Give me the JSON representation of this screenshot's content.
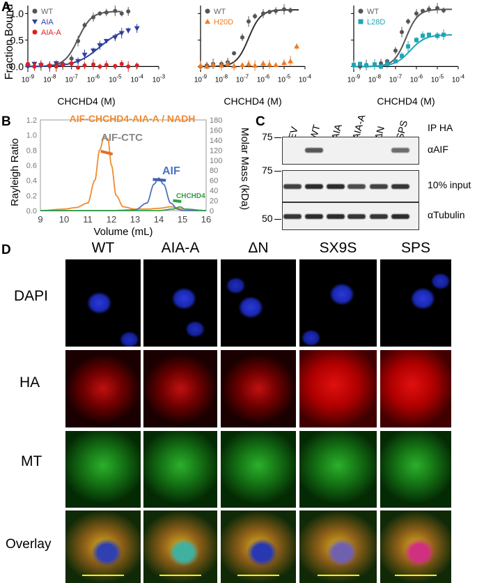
{
  "panels": {
    "A": "A",
    "B": "B",
    "C": "C",
    "D": "D"
  },
  "panelA": {
    "ylabel": "Fraction  Bound",
    "yticks": [
      "0.0",
      "0.5",
      "1.0"
    ],
    "xticks": [
      "10<sup>-9</sup>",
      "10<sup>-8</sup>",
      "10<sup>-7</sup>",
      "10<sup>-6</sup>",
      "10<sup>-5</sup>",
      "10<sup>-4</sup>",
      "10<sup>-3</sup>"
    ],
    "xticks_short": [
      "10<sup>-9</sup>",
      "10<sup>-8</sup>",
      "10<sup>-7</sup>",
      "10<sup>-6</sup>",
      "10<sup>-5</sup>",
      "10<sup>-4</sup>"
    ],
    "xlabel": "CHCHD4 (M)"
  },
  "chart_data": [
    {
      "type": "scatter",
      "x_scale": "log",
      "xlabel": "CHCHD4 (M)",
      "ylabel": "Fraction  Bound",
      "xlim": [
        1e-09,
        0.001
      ],
      "ylim": [
        -0.1,
        1.15
      ],
      "legend": "top-left",
      "series": [
        {
          "name": "WT",
          "color": "#555555",
          "marker": "circle",
          "x": [
            1e-09,
            2e-09,
            4e-09,
            1e-08,
            2e-08,
            4e-08,
            1e-07,
            2e-07,
            4e-07,
            1e-06,
            2e-06,
            4e-06,
            1e-05,
            2e-05,
            4e-05
          ],
          "y": [
            0.01,
            0.0,
            0.02,
            0.01,
            0.03,
            0.05,
            0.15,
            0.48,
            0.78,
            0.93,
            1.0,
            1.02,
            1.05,
            1.0,
            1.04
          ]
        },
        {
          "name": "AIA",
          "color": "#2e3f9e",
          "marker": "triangle-down",
          "x": [
            1e-09,
            2e-09,
            4e-09,
            1e-08,
            2e-08,
            4e-08,
            1e-07,
            2e-07,
            4e-07,
            1e-06,
            2e-06,
            4e-06,
            1e-05,
            2e-05,
            4e-05,
            0.0001
          ],
          "y": [
            0.0,
            0.05,
            0.02,
            0.0,
            0.06,
            0.02,
            0.04,
            0.1,
            0.22,
            0.3,
            0.4,
            0.48,
            0.55,
            0.63,
            0.68,
            0.72
          ]
        },
        {
          "name": "AIA-A",
          "color": "#e02020",
          "marker": "circle",
          "x": [
            1e-09,
            2e-09,
            4e-09,
            1e-08,
            2e-08,
            4e-08,
            1e-07,
            2e-07,
            4e-07,
            1e-06,
            2e-06,
            4e-06,
            1e-05,
            2e-05,
            4e-05,
            0.0001
          ],
          "y": [
            0.05,
            0.0,
            0.04,
            0.02,
            0.0,
            0.03,
            0.06,
            -0.02,
            0.02,
            0.04,
            0.0,
            0.03,
            0.01,
            0.05,
            0.0,
            0.02
          ]
        }
      ]
    },
    {
      "type": "scatter",
      "x_scale": "log",
      "xlabel": "CHCHD4 (M)",
      "xlim": [
        1e-09,
        0.0001
      ],
      "ylim": [
        -0.1,
        1.15
      ],
      "legend": "top-left",
      "series": [
        {
          "name": "WT",
          "color": "#555555",
          "marker": "circle",
          "x": [
            1e-09,
            2e-09,
            4e-09,
            1e-08,
            2e-08,
            4e-08,
            1e-07,
            2e-07,
            4e-07,
            1e-06,
            2e-06,
            4e-06,
            1e-05,
            2e-05
          ],
          "y": [
            0.0,
            0.02,
            0.05,
            0.05,
            0.08,
            0.25,
            0.55,
            0.85,
            0.95,
            1.0,
            1.03,
            1.05,
            1.08,
            1.06
          ]
        },
        {
          "name": "H20D",
          "color": "#f07a20",
          "marker": "triangle-up",
          "x": [
            1e-09,
            2e-09,
            4e-09,
            1e-08,
            2e-08,
            4e-08,
            1e-07,
            2e-07,
            4e-07,
            1e-06,
            2e-06,
            4e-06,
            1e-05,
            2e-05,
            4e-05
          ],
          "y": [
            0.02,
            0.0,
            0.04,
            0.02,
            0.05,
            0.01,
            0.03,
            0.05,
            0.02,
            0.06,
            0.04,
            0.03,
            0.07,
            0.1,
            0.38
          ]
        }
      ]
    },
    {
      "type": "scatter",
      "x_scale": "log",
      "xlabel": "CHCHD4 (M)",
      "xlim": [
        1e-09,
        0.0001
      ],
      "ylim": [
        -0.1,
        1.15
      ],
      "legend": "top-left",
      "series": [
        {
          "name": "WT",
          "color": "#555555",
          "marker": "circle",
          "x": [
            1e-09,
            2e-09,
            4e-09,
            1e-08,
            2e-08,
            4e-08,
            1e-07,
            2e-07,
            4e-07,
            1e-06,
            2e-06,
            4e-06,
            1e-05,
            2e-05
          ],
          "y": [
            0.02,
            0.0,
            0.03,
            0.04,
            0.06,
            0.1,
            0.3,
            0.65,
            0.85,
            1.0,
            1.05,
            1.08,
            1.1,
            1.06
          ]
        },
        {
          "name": "L28D",
          "color": "#1ea5b5",
          "marker": "square",
          "x": [
            1e-09,
            2e-09,
            4e-09,
            1e-08,
            2e-08,
            4e-08,
            1e-07,
            2e-07,
            4e-07,
            1e-06,
            2e-06,
            4e-06,
            1e-05,
            2e-05
          ],
          "y": [
            0.03,
            0.05,
            0.02,
            0.04,
            0.0,
            0.05,
            0.1,
            0.2,
            0.38,
            0.5,
            0.58,
            0.6,
            0.58,
            0.6
          ]
        }
      ]
    },
    {
      "type": "line",
      "title": "AIF-CHCHD4-AIA-A / NADH",
      "xlabel": "Volume (mL)",
      "ylabel": "Rayleigh Ratio",
      "y2label": "Molar Mass (kDa)",
      "xlim": [
        9,
        16
      ],
      "ylim": [
        0,
        1.2
      ],
      "y2lim": [
        0,
        180
      ],
      "xticks": [
        "9",
        "10",
        "11",
        "12",
        "13",
        "14",
        "15",
        "16"
      ],
      "yticks": [
        "0.0",
        "0.2",
        "0.4",
        "0.6",
        "0.8",
        "1.0",
        "1.2"
      ],
      "y2ticks": [
        "0",
        "20",
        "40",
        "60",
        "80",
        "100",
        "120",
        "140",
        "160",
        "180"
      ],
      "annotations": [
        "AIF-CTC",
        "AIF",
        "CHCHD4"
      ],
      "series": [
        {
          "name": "AIF-CTC",
          "color": "#f08a30",
          "x": [
            9,
            10,
            10.5,
            11,
            11.3,
            11.5,
            11.7,
            11.85,
            12,
            12.2,
            12.5,
            13,
            13.5,
            14,
            14.5,
            15,
            16
          ],
          "y": [
            0.0,
            0.02,
            0.04,
            0.1,
            0.4,
            0.8,
            0.98,
            0.95,
            0.6,
            0.2,
            0.05,
            0.02,
            0.02,
            0.03,
            0.05,
            0.02,
            0.0
          ]
        },
        {
          "name": "AIF",
          "color": "#4d72c0",
          "x": [
            9,
            12,
            13,
            13.5,
            13.8,
            14,
            14.2,
            14.5,
            14.8,
            15,
            16
          ],
          "y": [
            0.0,
            0.0,
            0.01,
            0.1,
            0.35,
            0.43,
            0.35,
            0.1,
            0.02,
            0.0,
            0.0
          ]
        },
        {
          "name": "CHCHD4",
          "color": "#30a040",
          "x": [
            9,
            14,
            14.6,
            14.9,
            15.1,
            16
          ],
          "y": [
            0.0,
            0.0,
            0.02,
            0.05,
            0.02,
            0.0
          ]
        }
      ]
    }
  ],
  "panelB": {
    "title": "AIF-CHCHD4-AIA-A / NADH",
    "ann_ctc": "AIF-CTC",
    "ann_aif": "AIF",
    "ann_chchd4": "CHCHD4",
    "xlabel": "Volume (mL)",
    "ylabel": "Rayleigh Ratio",
    "y2label": "Molar Mass (kDa)"
  },
  "panelC": {
    "lanes": [
      "EV",
      "WT",
      "AIA",
      "AIA-A",
      "ΔN",
      "SPS"
    ],
    "ip": "IP HA",
    "rows": [
      {
        "label": "αAIF",
        "marker": "75"
      },
      {
        "label": "10% input",
        "marker": "75"
      },
      {
        "label": "αTubulin",
        "marker": "50"
      }
    ]
  },
  "panelD": {
    "columns": [
      "WT",
      "AIA-A",
      "ΔN",
      "SX9S",
      "SPS"
    ],
    "rows": [
      "DAPI",
      "HA",
      "MT",
      "Overlay"
    ]
  }
}
